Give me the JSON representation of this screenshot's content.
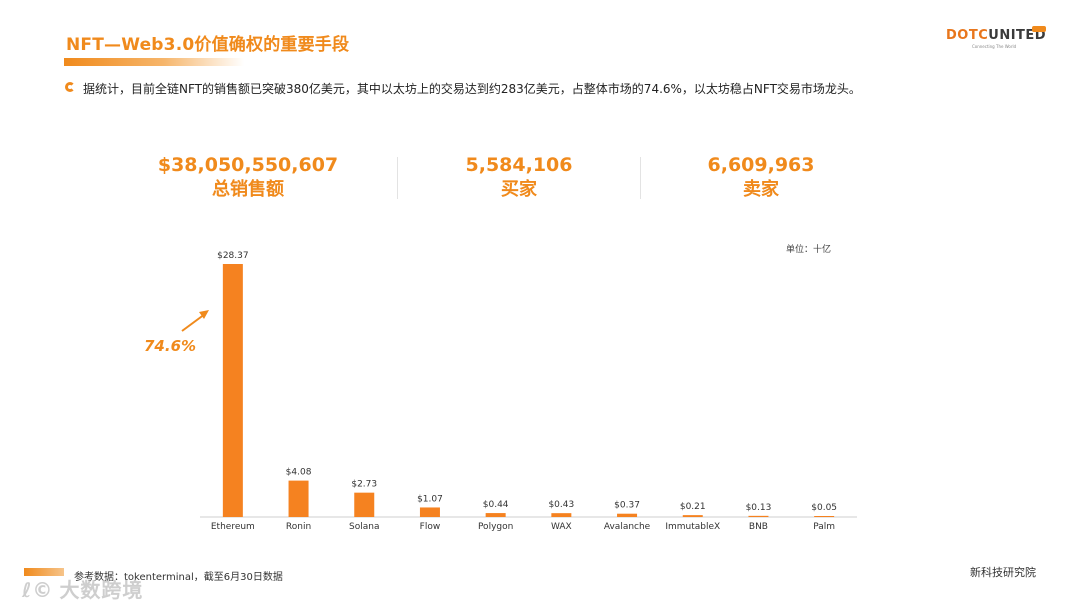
{
  "header": {
    "title": "NFT—Web3.0价值确权的重要手段",
    "logo_text_a": "DOTC",
    "logo_text_b": "UNITED",
    "logo_tagline": "Connecting The World"
  },
  "bullet": {
    "text": "据统计，目前全链NFT的销售额已突破380亿美元，其中以太坊上的交易达到约283亿美元，占整体市场的74.6%，以太坊稳占NFT交易市场龙头。"
  },
  "stats": [
    {
      "value": "$38,050,550,607",
      "label": "总销售额"
    },
    {
      "value": "5,584,106",
      "label": "买家"
    },
    {
      "value": "6,609,963",
      "label": "卖家"
    }
  ],
  "annotation": {
    "share": "74.6%"
  },
  "unit_label": "单位：十亿",
  "chart_data": {
    "type": "bar",
    "categories": [
      "Ethereum",
      "Ronin",
      "Solana",
      "Flow",
      "Polygon",
      "WAX",
      "Avalanche",
      "ImmutableX",
      "BNB",
      "Palm"
    ],
    "values": [
      28.37,
      4.08,
      2.73,
      1.07,
      0.44,
      0.43,
      0.37,
      0.21,
      0.13,
      0.05
    ],
    "value_labels": [
      "$28.37",
      "$4.08",
      "$2.73",
      "$1.07",
      "$0.44",
      "$0.43",
      "$0.37",
      "$0.21",
      "$0.13",
      "$0.05"
    ],
    "title": "",
    "xlabel": "",
    "ylabel": "",
    "ylim": [
      0,
      28.37
    ],
    "grid": false,
    "bar_color": "#F58220"
  },
  "footer": {
    "source": "参考数据：tokenterminal，截至6月30日数据",
    "brand": "新科技研究院",
    "watermark": "大数跨境",
    "watermark_icon": "ℓ©"
  },
  "colors": {
    "accent": "#F08A1C",
    "bar": "#F58220"
  }
}
